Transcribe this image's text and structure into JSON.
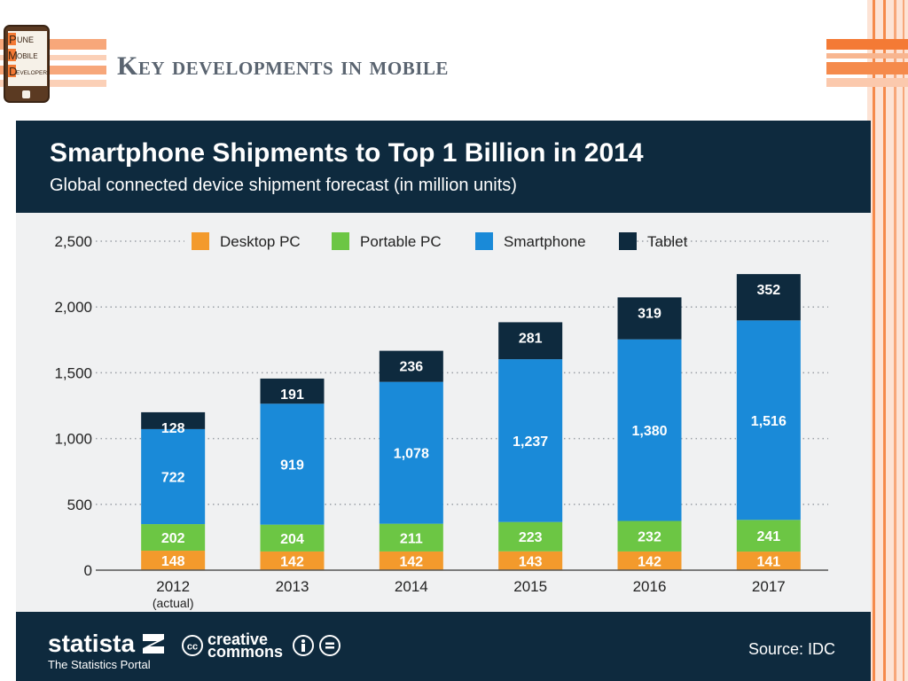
{
  "slide": {
    "title_initial": "K",
    "title_rest": "ey developments in mobile"
  },
  "logo": {
    "lines": [
      {
        "initial": "P",
        "rest": "UNE"
      },
      {
        "initial": "M",
        "rest": "OBILE"
      },
      {
        "initial": "D",
        "rest": "EVELOPERS"
      }
    ]
  },
  "infographic": {
    "title": "Smartphone Shipments to Top 1 Billion in 2014",
    "subtitle": "Global connected device shipment forecast (in million units)",
    "brand": "statista",
    "brand_tagline": "The Statistics Portal",
    "cc_line1": "creative",
    "cc_line2": "commons",
    "source": "Source: IDC"
  },
  "colors": {
    "header_bg": "#0e2a3e",
    "chart_bg": "#f0f1f2",
    "desktop": "#f39a2c",
    "portable": "#6cc644",
    "smartphone": "#1a8ad8",
    "tablet": "#0e2a3e",
    "accent_stripe": "#f58a4b"
  },
  "chart_data": {
    "type": "bar",
    "stacked": true,
    "categories": [
      "2012",
      "2013",
      "2014",
      "2015",
      "2016",
      "2017"
    ],
    "category_sublabels": [
      "(actual)",
      "",
      "",
      "",
      "",
      ""
    ],
    "series": [
      {
        "name": "Desktop PC",
        "values": [
          148,
          142,
          142,
          143,
          142,
          141
        ]
      },
      {
        "name": "Portable PC",
        "values": [
          202,
          204,
          211,
          223,
          232,
          241
        ]
      },
      {
        "name": "Smartphone",
        "values": [
          722,
          919,
          1078,
          1237,
          1380,
          1516
        ]
      },
      {
        "name": "Tablet",
        "values": [
          128,
          191,
          236,
          281,
          319,
          352
        ]
      }
    ],
    "value_labels": [
      [
        "148",
        "142",
        "142",
        "143",
        "142",
        "141"
      ],
      [
        "202",
        "204",
        "211",
        "223",
        "232",
        "241"
      ],
      [
        "722",
        "919",
        "1,078",
        "1,237",
        "1,380",
        "1,516"
      ],
      [
        "128",
        "191",
        "236",
        "281",
        "319",
        "352"
      ]
    ],
    "yticks": [
      0,
      500,
      1000,
      1500,
      2000,
      2500
    ],
    "ytick_labels": [
      "0",
      "500",
      "1,000",
      "1,500",
      "2,000",
      "2,500"
    ],
    "ylim": [
      0,
      2500
    ],
    "grid": "dotted horizontal",
    "legend_position": "top",
    "title": "Smartphone Shipments to Top 1 Billion in 2014",
    "xlabel": "",
    "ylabel": ""
  }
}
